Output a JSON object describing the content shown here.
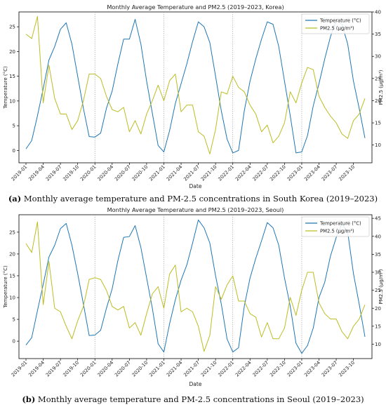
{
  "chart_data": [
    {
      "type": "line",
      "title": "Monthly Average Temperature and PM2.5 (2019–2023, Korea)",
      "xlabel": "Date",
      "ylabel_left": "Temperature (°C)",
      "ylabel_right": "PM2.5 (µg/m³)",
      "ylim_left": [
        -2.5,
        28
      ],
      "ylim_right": [
        6,
        40
      ],
      "yticks_left": [
        0,
        5,
        10,
        15,
        20,
        25
      ],
      "yticks_right": [
        10,
        15,
        20,
        25,
        30,
        35,
        40
      ],
      "x_tick_labels": [
        "2019-01",
        "2019-04",
        "2019-07",
        "2019-10",
        "2020-01",
        "2020-04",
        "2020-07",
        "2020-10",
        "2021-01",
        "2021-04",
        "2021-07",
        "2021-10",
        "2022-01",
        "2022-04",
        "2022-07",
        "2022-10",
        "2023-01",
        "2023-04",
        "2023-07",
        "2023-10"
      ],
      "year_markers": [
        "2020-01",
        "2021-01",
        "2022-01",
        "2023-01"
      ],
      "legend_position": "top-right",
      "grid": false,
      "series": [
        {
          "name": "Temperature (°C)",
          "axis": "left",
          "color": "#1f77b4",
          "values": [
            0.3,
            2.0,
            7.0,
            12.5,
            18.3,
            21.0,
            24.5,
            25.8,
            21.5,
            15.0,
            8.5,
            2.8,
            2.7,
            3.5,
            8.5,
            12.0,
            17.5,
            22.5,
            22.5,
            26.5,
            21.5,
            14.0,
            7.5,
            1.0,
            -0.3,
            4.0,
            9.5,
            13.5,
            17.5,
            22.0,
            26.0,
            25.0,
            21.8,
            15.0,
            8.0,
            2.3,
            -0.5,
            0.0,
            8.0,
            14.0,
            18.5,
            22.5,
            26.0,
            25.5,
            21.0,
            14.0,
            7.0,
            -0.5,
            -0.3,
            3.0,
            9.0,
            13.5,
            18.5,
            23.0,
            26.3,
            25.5,
            21.5,
            14.0,
            8.5,
            2.5
          ]
        },
        {
          "name": "PM2.5 (µg/m³)",
          "axis": "right",
          "color": "#bcbd22",
          "values": [
            35.0,
            34.0,
            39.0,
            19.5,
            28.0,
            20.5,
            17.0,
            17.0,
            13.5,
            15.5,
            20.0,
            26.0,
            26.0,
            25.0,
            21.0,
            18.0,
            17.5,
            18.5,
            13.0,
            15.5,
            12.5,
            17.0,
            20.0,
            23.5,
            20.0,
            24.5,
            26.0,
            17.5,
            19.0,
            19.0,
            13.0,
            12.0,
            8.0,
            13.5,
            22.0,
            21.5,
            25.5,
            23.0,
            22.0,
            19.0,
            17.0,
            13.0,
            14.5,
            10.5,
            12.0,
            15.0,
            22.0,
            19.5,
            24.0,
            27.5,
            27.0,
            21.0,
            18.5,
            16.5,
            15.0,
            12.5,
            11.5,
            15.5,
            17.0,
            20.5
          ]
        }
      ]
    },
    {
      "type": "line",
      "title": "Monthly Average Temperature and PM2.5 (2019–2023, Seoul)",
      "xlabel": "Date",
      "ylabel_left": "Temperature (°C)",
      "ylabel_right": "PM2.5 (µg/m³)",
      "ylim_left": [
        -4,
        29
      ],
      "ylim_right": [
        6,
        46
      ],
      "yticks_left": [
        0,
        5,
        10,
        15,
        20,
        25
      ],
      "yticks_right": [
        10,
        15,
        20,
        25,
        30,
        35,
        40,
        45
      ],
      "x_tick_labels": [
        "2019-01",
        "2019-04",
        "2019-07",
        "2019-10",
        "2020-01",
        "2020-04",
        "2020-07",
        "2020-10",
        "2021-01",
        "2021-04",
        "2021-07",
        "2021-10",
        "2022-01",
        "2022-04",
        "2022-07",
        "2022-10",
        "2023-01",
        "2023-04",
        "2023-07",
        "2023-10"
      ],
      "year_markers": [
        "2020-01",
        "2021-01",
        "2022-01",
        "2023-01"
      ],
      "legend_position": "top-right",
      "grid": false,
      "series": [
        {
          "name": "Temperature (°C)",
          "axis": "left",
          "color": "#1f77b4",
          "values": [
            -0.9,
            0.8,
            7.0,
            13.0,
            19.3,
            22.0,
            25.8,
            27.0,
            22.0,
            15.5,
            8.5,
            1.3,
            1.4,
            2.5,
            7.5,
            12.0,
            18.5,
            23.8,
            24.0,
            26.5,
            21.5,
            14.5,
            7.5,
            -0.6,
            -2.5,
            4.0,
            9.5,
            14.0,
            17.5,
            22.5,
            27.8,
            26.0,
            22.5,
            15.0,
            8.5,
            0.5,
            -2.5,
            -1.5,
            8.0,
            14.5,
            19.0,
            23.0,
            27.2,
            26.0,
            22.0,
            14.5,
            8.0,
            -0.5,
            -2.8,
            -1.0,
            3.0,
            10.0,
            13.5,
            19.5,
            23.8,
            27.0,
            25.0,
            15.5,
            8.5,
            1.0
          ]
        },
        {
          "name": "PM2.5 (µg/m³)",
          "axis": "right",
          "color": "#bcbd22",
          "values": [
            38.0,
            35.5,
            44.0,
            21.0,
            33.0,
            20.0,
            19.0,
            15.0,
            11.5,
            16.5,
            20.5,
            28.0,
            28.5,
            28.0,
            25.0,
            20.5,
            19.5,
            20.5,
            14.5,
            16.0,
            12.5,
            18.5,
            24.0,
            26.0,
            20.0,
            29.5,
            32.0,
            19.0,
            20.0,
            19.0,
            15.0,
            8.0,
            12.5,
            26.0,
            22.5,
            26.5,
            29.0,
            22.0,
            22.0,
            18.5,
            17.5,
            12.0,
            16.0,
            11.5,
            11.5,
            14.5,
            23.0,
            18.0,
            25.0,
            30.0,
            30.0,
            21.5,
            18.5,
            17.0,
            17.0,
            13.5,
            11.5,
            15.0,
            17.0,
            21.0
          ]
        }
      ]
    }
  ],
  "captions": [
    {
      "label": "(a)",
      "text": " Monthly average temperature and PM-2.5 concentrations in South Korea (2019–2023)"
    },
    {
      "label": "(b)",
      "text": " Monthly average temperature and PM-2.5 concentrations in Seoul (2019–2023)"
    }
  ]
}
